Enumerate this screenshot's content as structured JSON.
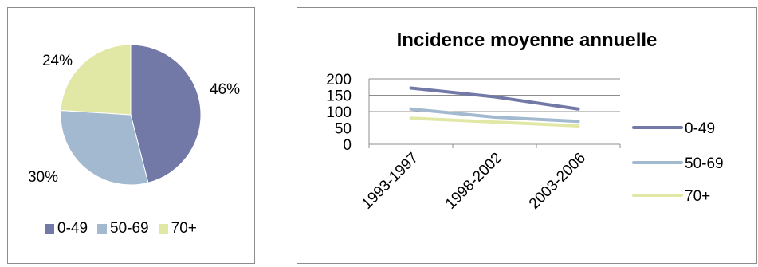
{
  "chart_data": [
    {
      "type": "pie",
      "title": "",
      "categories": [
        "0-49",
        "50-69",
        "70+"
      ],
      "values": [
        46,
        30,
        24
      ],
      "labels": [
        "46%",
        "30%",
        "24%"
      ],
      "colors": [
        "#7279A7",
        "#A3B9D0",
        "#E1E8A5"
      ],
      "legend_position": "bottom"
    },
    {
      "type": "line",
      "title": "Incidence moyenne annuelle",
      "categories": [
        "1993-1997",
        "1998-2002",
        "2003-2006"
      ],
      "series": [
        {
          "name": "0-49",
          "values": [
            172,
            145,
            108
          ],
          "color": "#7279A7"
        },
        {
          "name": "50-69",
          "values": [
            108,
            83,
            70
          ],
          "color": "#A3B9D0"
        },
        {
          "name": "70+",
          "values": [
            80,
            68,
            56
          ],
          "color": "#E1E8A5"
        }
      ],
      "yticks": [
        0,
        50,
        100,
        150,
        200
      ],
      "ylim": [
        0,
        200
      ],
      "grid": true,
      "legend_position": "right"
    }
  ]
}
